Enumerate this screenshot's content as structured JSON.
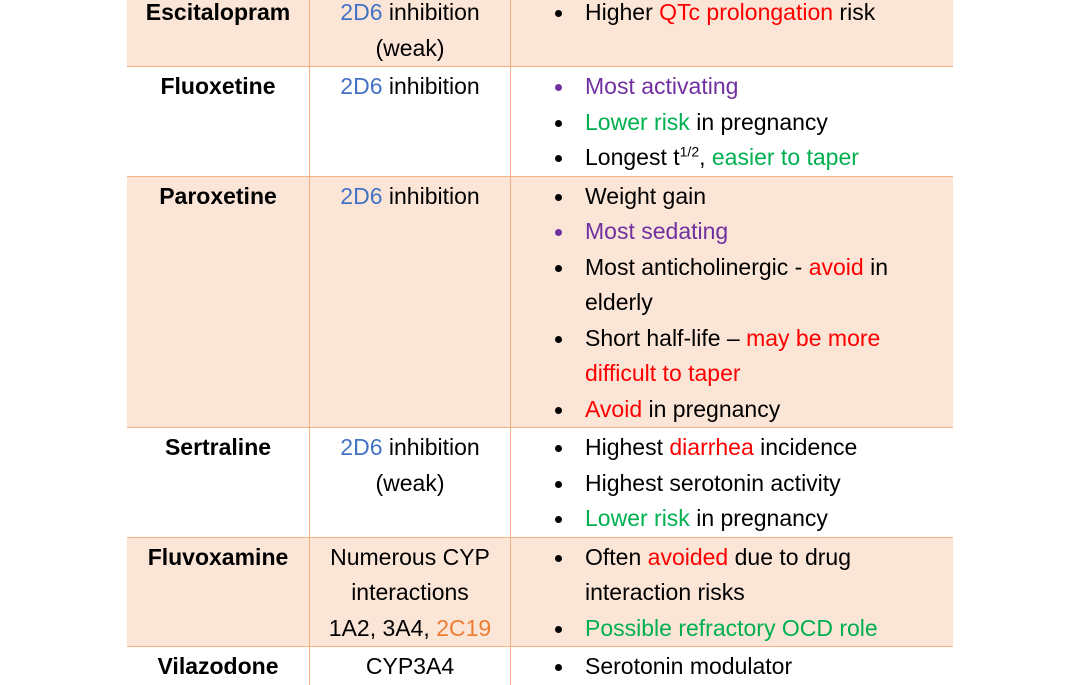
{
  "colors": {
    "blue": "#4472c4",
    "red": "#ff0000",
    "green": "#00b050",
    "purple": "#7030a0",
    "orange": "#ed7d31",
    "black": "#000000"
  },
  "rows": [
    {
      "drug": "Escitalopram",
      "shade": true,
      "cyp": [
        [
          {
            "t": "2D6",
            "c": "blue"
          },
          {
            "t": " inhibition"
          }
        ],
        [
          {
            "t": "(weak)"
          }
        ]
      ],
      "notes": [
        {
          "bullet": "black",
          "segs": [
            {
              "t": "Higher "
            },
            {
              "t": "QTc prolongation",
              "c": "red"
            },
            {
              "t": " risk"
            }
          ]
        }
      ]
    },
    {
      "drug": "Fluoxetine",
      "shade": false,
      "cyp": [
        [
          {
            "t": "2D6",
            "c": "blue"
          },
          {
            "t": " inhibition"
          }
        ]
      ],
      "notes": [
        {
          "bullet": "purple",
          "segs": [
            {
              "t": "Most activating",
              "c": "purple"
            }
          ]
        },
        {
          "bullet": "black",
          "segs": [
            {
              "t": "Lower risk",
              "c": "green"
            },
            {
              "t": " in pregnancy"
            }
          ]
        },
        {
          "bullet": "black",
          "segs": [
            {
              "t": "Longest t"
            },
            {
              "t": "1/2",
              "sup": true
            },
            {
              "t": ", "
            },
            {
              "t": "easier to taper",
              "c": "green"
            }
          ]
        }
      ]
    },
    {
      "drug": "Paroxetine",
      "shade": true,
      "cyp": [
        [
          {
            "t": "2D6",
            "c": "blue"
          },
          {
            "t": " inhibition"
          }
        ]
      ],
      "notes": [
        {
          "bullet": "black",
          "segs": [
            {
              "t": "Weight gain"
            }
          ]
        },
        {
          "bullet": "purple",
          "segs": [
            {
              "t": "Most sedating",
              "c": "purple"
            }
          ]
        },
        {
          "bullet": "black",
          "segs": [
            {
              "t": "Most anticholinergic - "
            },
            {
              "t": "avoid",
              "c": "red"
            },
            {
              "t": " in elderly"
            }
          ]
        },
        {
          "bullet": "black",
          "segs": [
            {
              "t": "Short half-life – "
            },
            {
              "t": "may be more difficult to taper",
              "c": "red"
            }
          ]
        },
        {
          "bullet": "black",
          "segs": [
            {
              "t": "Avoid",
              "c": "red"
            },
            {
              "t": " in pregnancy"
            }
          ]
        }
      ]
    },
    {
      "drug": "Sertraline",
      "shade": false,
      "cyp": [
        [
          {
            "t": "2D6",
            "c": "blue"
          },
          {
            "t": " inhibition"
          }
        ],
        [
          {
            "t": "(weak)"
          }
        ]
      ],
      "notes": [
        {
          "bullet": "black",
          "segs": [
            {
              "t": "Highest "
            },
            {
              "t": "diarrhea",
              "c": "red"
            },
            {
              "t": " incidence"
            }
          ]
        },
        {
          "bullet": "black",
          "segs": [
            {
              "t": "Highest serotonin activity"
            }
          ]
        },
        {
          "bullet": "black",
          "segs": [
            {
              "t": "Lower risk",
              "c": "green"
            },
            {
              "t": " in pregnancy"
            }
          ]
        }
      ]
    },
    {
      "drug": "Fluvoxamine",
      "shade": true,
      "cyp": [
        [
          {
            "t": "Numerous CYP"
          }
        ],
        [
          {
            "t": "interactions"
          }
        ],
        [
          {
            "t": "1A2, 3A4, "
          },
          {
            "t": "2C19",
            "c": "orange"
          }
        ]
      ],
      "notes": [
        {
          "bullet": "black",
          "segs": [
            {
              "t": "Often "
            },
            {
              "t": "avoided",
              "c": "red"
            },
            {
              "t": " due to drug interaction risks"
            }
          ]
        },
        {
          "bullet": "black",
          "segs": [
            {
              "t": "Possible refractory OCD role",
              "c": "green"
            }
          ]
        }
      ]
    },
    {
      "drug": "Vilazodone",
      "shade": false,
      "cyp": [
        [
          {
            "t": "CYP3A4"
          }
        ]
      ],
      "notes": [
        {
          "bullet": "black",
          "segs": [
            {
              "t": "Serotonin modulator"
            }
          ]
        }
      ]
    }
  ]
}
